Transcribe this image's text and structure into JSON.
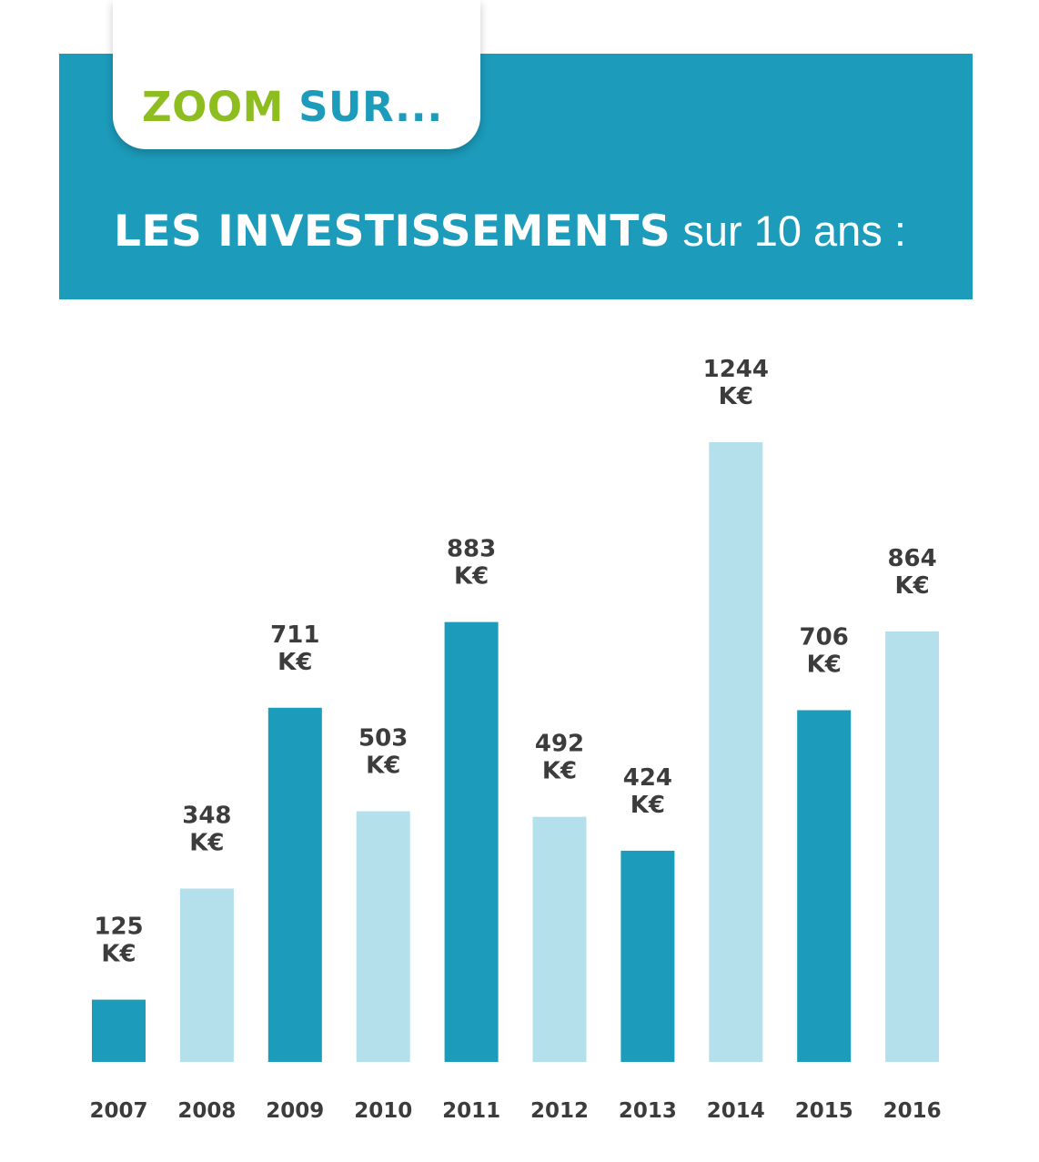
{
  "header": {
    "zoom_word": "ZOOM",
    "sur_word": "SUR...",
    "title_bold": "LES INVESTISSEMENTS",
    "title_light": "sur 10 ans :"
  },
  "colors": {
    "banner": "#1c9bbb",
    "zoom_green": "#8ebd1f",
    "bar_dark": "#1c9bbb",
    "bar_light": "#b4e0eb",
    "label": "#3c3c3c"
  },
  "chart_data": {
    "type": "bar",
    "title": "LES INVESTISSEMENTS sur 10 ans :",
    "categories": [
      "2007",
      "2008",
      "2009",
      "2010",
      "2011",
      "2012",
      "2013",
      "2014",
      "2015",
      "2016"
    ],
    "values": [
      125,
      348,
      711,
      503,
      883,
      492,
      424,
      1244,
      706,
      864
    ],
    "unit": "K€",
    "bar_colors": [
      "#1c9bbb",
      "#b4e0eb",
      "#1c9bbb",
      "#b4e0eb",
      "#1c9bbb",
      "#b4e0eb",
      "#1c9bbb",
      "#b4e0eb",
      "#1c9bbb",
      "#b4e0eb"
    ],
    "xlabel": "",
    "ylabel": "",
    "ylim": [
      0,
      1244
    ],
    "grid": false,
    "legend": "none"
  }
}
